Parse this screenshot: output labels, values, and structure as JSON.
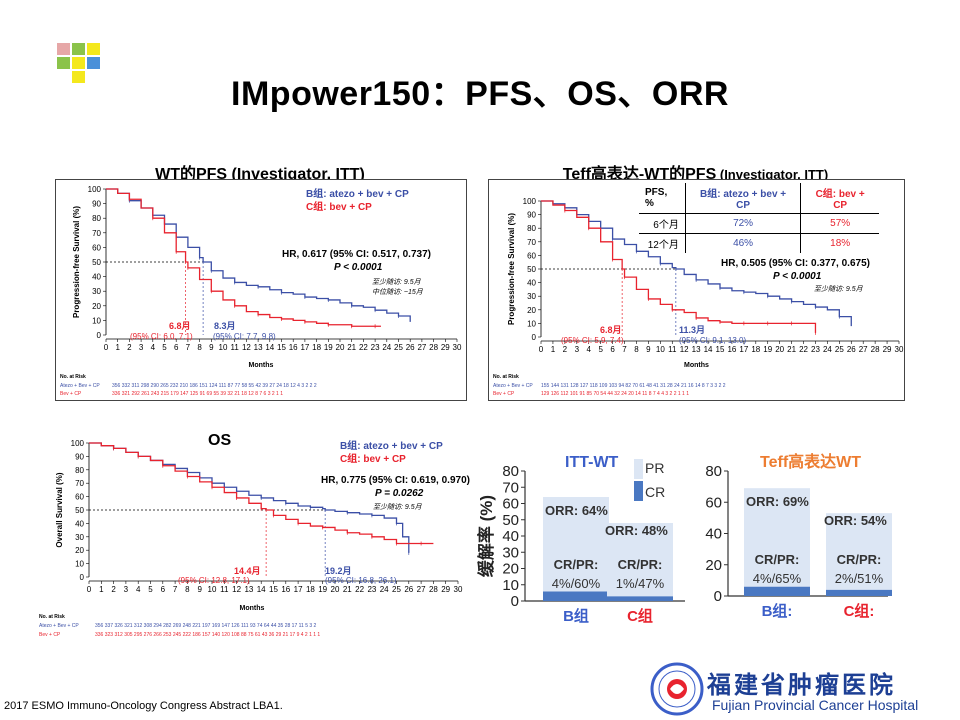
{
  "slide_title": "IMpower150：PFS、OS、ORR",
  "footer": "2017 ESMO Immuno-Oncology Congress Abstract LBA1.",
  "hospital": {
    "name_cn": "福建省肿瘤医院",
    "name_en": "Fujian Provincial Cancer Hospital"
  },
  "colors": {
    "blue": "#3b4fa6",
    "red": "#e8232e",
    "bar_bg": "#dce6f4",
    "cr_bar": "#4a78c2",
    "itt_title": "#3b5ec8",
    "teff_title": "#ed7d31"
  },
  "panel_wt_pfs": {
    "title": "WT的PFS (Investigator, ITT)",
    "ylabel": "Progression-free Survival (%)",
    "xlabel": "Months",
    "legend_b": "B组: atezo + bev + CP",
    "legend_c": "C组: bev + CP",
    "hr": "HR, 0.617 (95% CI: 0.517, 0.737)",
    "p": "P < 0.0001",
    "note1": "至少随访: 9.5月",
    "note2": "中位随访: ~15月",
    "median_c": "6.8月",
    "ci_c": "(95% CI: 6.0, 7.1)",
    "median_b": "8.3月",
    "ci_b": "(95% CI: 7.7, 9.8)",
    "risk_title": "No. at Risk",
    "risk_b_label": "Atezo + Bev + CP",
    "risk_c_label": "Bev + CP",
    "risk_b": "356 332 311 298 290 265 232 210 186 151 124 111 87 77 58 55 42 39 27 24 18 12 4 3 2 2 2",
    "risk_c": "336 321 292 261 243 215 179 147 125 91 69 55 39 32 21 18 12 8 7 6 3 2 1 1"
  },
  "panel_teff_pfs": {
    "title_bold": "Teff高表达-WT的PFS",
    "title_rest": " (Investigator, ITT)",
    "ylabel": "Progression-free Survival (%)",
    "xlabel": "Months",
    "table_header": [
      "PFS, %",
      "B组: atezo + bev + CP",
      "C组: bev + CP"
    ],
    "table_rows": [
      [
        "6个月",
        "72%",
        "57%"
      ],
      [
        "12个月",
        "46%",
        "18%"
      ]
    ],
    "hr": "HR, 0.505 (95% CI: 0.377, 0.675)",
    "p": "P < 0.0001",
    "note1": "至少随访: 9.5月",
    "median_c": "6.8月",
    "ci_c": "(95% CI: 5.9, 7.4)",
    "median_b": "11.3月",
    "ci_b": "(95% CI: 9.1, 13.0)",
    "risk_title": "No. at Risk",
    "risk_b_label": "Atezo + Bev + CP",
    "risk_c_label": "Bev + CP",
    "risk_b": "155 144 131 128 127 118 109 103 94 82 70 61 48 41 31 28 24 21 16 14 8 7 3 3 2 2",
    "risk_c": "129 126 112 101 91 85 70 54 44 32 24 20 14 11 8 7 4 4 3 2 2 1 1 1"
  },
  "panel_os": {
    "title": "OS",
    "ylabel": "Overall Survival (%)",
    "xlabel": "Months",
    "legend_b": "B组: atezo + bev + CP",
    "legend_c": "C组: bev + CP",
    "hr": "HR, 0.775 (95% CI: 0.619, 0.970)",
    "p": "P = 0.0262",
    "note1": "至少随访: 9.5月",
    "median_c": "14.4月",
    "ci_c": "(95% CI: 12.8, 17.1)",
    "median_b": "19.2月",
    "ci_b": "(95% CI: 16.8, 26.1)",
    "risk_title": "No. at Risk",
    "risk_b_label": "Atezo + Bev + CP",
    "risk_c_label": "Bev + CP",
    "risk_b": "356 337 326 321 312 308 294 282 269 248 221 197 169 147 126 111 93 74 64 44 35 28 17 11 5 3 2",
    "risk_c": "336 323 312 305 295 276 266 253 245 222 186 157 140 120 108 88 75 61 43 36 29 21 17 9 4 2 1 1 1"
  },
  "chart_data": [
    {
      "type": "line",
      "title": "WT的PFS (Investigator, ITT)",
      "xlabel": "Months",
      "ylabel": "Progression-free Survival (%)",
      "xlim": [
        0,
        30
      ],
      "ylim": [
        0,
        100
      ],
      "x_ticks": [
        0,
        1,
        2,
        3,
        4,
        5,
        6,
        7,
        8,
        9,
        10,
        11,
        12,
        13,
        14,
        15,
        16,
        17,
        18,
        19,
        20,
        21,
        22,
        23,
        24,
        25,
        26,
        27,
        28,
        29,
        30
      ],
      "y_ticks": [
        0,
        10,
        20,
        30,
        40,
        50,
        60,
        70,
        80,
        90,
        100
      ],
      "series": [
        {
          "name": "B组: atezo + bev + CP",
          "color": "#3b4fa6",
          "x": [
            0,
            1,
            2,
            3,
            4,
            5,
            6,
            7,
            8,
            8.3,
            9,
            10,
            11,
            12,
            13,
            14,
            15,
            16,
            17,
            18,
            19,
            20,
            21,
            22,
            23,
            24,
            25,
            26
          ],
          "y": [
            100,
            97,
            92,
            87,
            82,
            76,
            67,
            60,
            53,
            50,
            44,
            39,
            36,
            34,
            33,
            31,
            29,
            28,
            26,
            25,
            24,
            22,
            20,
            19,
            17,
            15,
            13,
            9
          ]
        },
        {
          "name": "C组: bev + CP",
          "color": "#e8232e",
          "x": [
            0,
            1,
            2,
            3,
            4,
            5,
            6,
            6.8,
            7,
            8,
            9,
            10,
            11,
            12,
            13,
            14,
            15,
            16,
            17,
            18,
            19,
            20,
            21,
            22,
            23,
            23.5
          ],
          "y": [
            100,
            97,
            93,
            87,
            80,
            70,
            57,
            50,
            46,
            38,
            30,
            24,
            20,
            16,
            14,
            12,
            11,
            10,
            9,
            8,
            7,
            7,
            6,
            6,
            6,
            6
          ]
        }
      ],
      "medians": [
        {
          "series": "C组: bev + CP",
          "x": 6.8,
          "label": "6.8月",
          "ci": "(95% CI: 6.0, 7.1)"
        },
        {
          "series": "B组: atezo + bev + CP",
          "x": 8.3,
          "label": "8.3月",
          "ci": "(95% CI: 7.7, 9.8)"
        }
      ]
    },
    {
      "type": "line",
      "title": "Teff高表达-WT的PFS (Investigator, ITT)",
      "xlabel": "Months",
      "ylabel": "Progression-free Survival (%)",
      "xlim": [
        0,
        30
      ],
      "ylim": [
        0,
        100
      ],
      "x_ticks": [
        0,
        1,
        2,
        3,
        4,
        5,
        6,
        7,
        8,
        9,
        10,
        11,
        12,
        13,
        14,
        15,
        16,
        17,
        18,
        19,
        20,
        21,
        22,
        23,
        24,
        25,
        26,
        27,
        28,
        29,
        30
      ],
      "y_ticks": [
        0,
        10,
        20,
        30,
        40,
        50,
        60,
        70,
        80,
        90,
        100
      ],
      "series": [
        {
          "name": "B组: atezo + bev + CP",
          "color": "#3b4fa6",
          "x": [
            0,
            1,
            2,
            3,
            4,
            5,
            6,
            7,
            8,
            9,
            10,
            11,
            11.3,
            12,
            13,
            14,
            15,
            16,
            17,
            18,
            19,
            20,
            21,
            22,
            23,
            24,
            25,
            26
          ],
          "y": [
            100,
            98,
            95,
            90,
            85,
            80,
            72,
            68,
            63,
            59,
            54,
            51,
            50,
            46,
            42,
            39,
            36,
            34,
            33,
            32,
            30,
            28,
            26,
            24,
            22,
            20,
            15,
            8
          ]
        },
        {
          "name": "C组: bev + CP",
          "color": "#e8232e",
          "x": [
            0,
            1,
            2,
            3,
            4,
            5,
            6,
            6.8,
            7,
            8,
            9,
            10,
            11,
            12,
            13,
            14,
            15,
            16,
            17,
            18,
            19,
            20,
            21,
            22,
            23
          ],
          "y": [
            100,
            97,
            93,
            88,
            80,
            70,
            57,
            50,
            44,
            35,
            28,
            24,
            20,
            18,
            14,
            12,
            11,
            10,
            10,
            10,
            10,
            10,
            10,
            10,
            3
          ]
        }
      ],
      "table": {
        "header": [
          "PFS, %",
          "B组: atezo + bev + CP",
          "C组: bev + CP"
        ],
        "rows": [
          [
            "6个月",
            "72%",
            "57%"
          ],
          [
            "12个月",
            "46%",
            "18%"
          ]
        ]
      },
      "medians": [
        {
          "series": "C组: bev + CP",
          "x": 6.8,
          "label": "6.8月",
          "ci": "(95% CI: 5.9, 7.4)"
        },
        {
          "series": "B组: atezo + bev + CP",
          "x": 11.3,
          "label": "11.3月",
          "ci": "(95% CI: 9.1, 13.0)"
        }
      ]
    },
    {
      "type": "line",
      "title": "OS",
      "xlabel": "Months",
      "ylabel": "Overall Survival (%)",
      "xlim": [
        0,
        30
      ],
      "ylim": [
        0,
        100
      ],
      "x_ticks": [
        0,
        1,
        2,
        3,
        4,
        5,
        6,
        7,
        8,
        9,
        10,
        11,
        12,
        13,
        14,
        15,
        16,
        17,
        18,
        19,
        20,
        21,
        22,
        23,
        24,
        25,
        26,
        27,
        28,
        29,
        30
      ],
      "y_ticks": [
        0,
        10,
        20,
        30,
        40,
        50,
        60,
        70,
        80,
        90,
        100
      ],
      "series": [
        {
          "name": "B组: atezo + bev + CP",
          "color": "#3b4fa6",
          "x": [
            0,
            1,
            2,
            3,
            4,
            5,
            6,
            7,
            8,
            9,
            10,
            11,
            12,
            13,
            14,
            15,
            16,
            17,
            18,
            19,
            19.2,
            20,
            21,
            22,
            23,
            24,
            25,
            25.5,
            26
          ],
          "y": [
            100,
            98,
            96,
            93,
            90,
            87,
            84,
            81,
            78,
            74,
            70,
            67,
            64,
            61,
            59,
            57,
            55,
            53,
            52,
            51,
            50,
            49,
            48,
            47,
            46,
            44,
            40,
            30,
            18
          ]
        },
        {
          "name": "C组: bev + CP",
          "color": "#e8232e",
          "x": [
            0,
            1,
            2,
            3,
            4,
            5,
            6,
            7,
            8,
            9,
            10,
            11,
            12,
            13,
            14,
            14.4,
            15,
            16,
            17,
            18,
            19,
            20,
            21,
            22,
            23,
            24,
            25,
            26,
            27,
            28
          ],
          "y": [
            100,
            98,
            96,
            93,
            90,
            87,
            83,
            79,
            75,
            71,
            67,
            63,
            59,
            55,
            51,
            50,
            46,
            43,
            40,
            38,
            37,
            35,
            33,
            32,
            30,
            28,
            25,
            25,
            25,
            25
          ]
        }
      ],
      "medians": [
        {
          "series": "C组: bev + CP",
          "x": 14.4,
          "label": "14.4月",
          "ci": "(95% CI: 12.8, 17.1)"
        },
        {
          "series": "B组: atezo + bev + CP",
          "x": 19.2,
          "label": "19.2月",
          "ci": "(95% CI: 16.8, 26.1)"
        }
      ]
    },
    {
      "type": "bar",
      "title": "ITT-WT",
      "ylabel": "缓解率 (%)",
      "ylim": [
        0,
        80
      ],
      "y_ticks": [
        0,
        10,
        20,
        30,
        40,
        50,
        60,
        70,
        80
      ],
      "legend": [
        "PR",
        "CR"
      ],
      "categories": [
        "B组",
        "C组"
      ],
      "series": [
        {
          "name": "CR",
          "values": [
            4,
            1
          ]
        },
        {
          "name": "PR",
          "values": [
            60,
            47
          ]
        }
      ],
      "orr_labels": [
        "ORR: 64%",
        "ORR: 48%"
      ],
      "crpr_labels": [
        "CR/PR:",
        "CR/PR:"
      ],
      "crpr_values": [
        "4%/60%",
        "1%/47%"
      ]
    },
    {
      "type": "bar",
      "title": "Teff高表达WT",
      "ylim": [
        0,
        80
      ],
      "y_ticks": [
        0,
        20,
        40,
        60,
        80
      ],
      "categories": [
        "B组:",
        "C组:"
      ],
      "series": [
        {
          "name": "CR",
          "values": [
            4,
            2
          ]
        },
        {
          "name": "PR",
          "values": [
            65,
            51
          ]
        }
      ],
      "orr_labels": [
        "ORR: 69%",
        "ORR: 54%"
      ],
      "crpr_labels": [
        "CR/PR:",
        "CR/PR:"
      ],
      "crpr_values": [
        "4%/65%",
        "2%/51%"
      ]
    }
  ]
}
